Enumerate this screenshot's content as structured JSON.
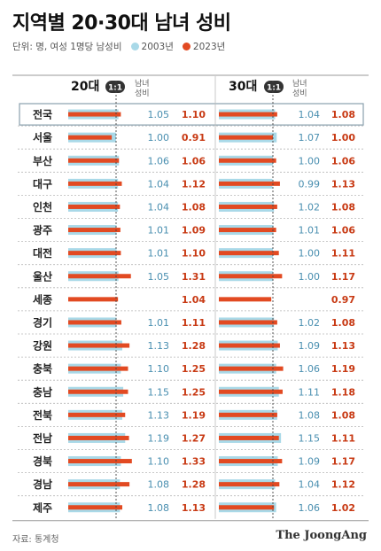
{
  "title": "지역별 20·30대 남녀 성비",
  "legend": {
    "unit": "단위: 명, 여성 1명당 남성비",
    "series": [
      {
        "name": "2003년",
        "color": "#a9d9e8"
      },
      {
        "name": "2023년",
        "color": "#e24a22"
      }
    ]
  },
  "source": "자료: 통계청",
  "brand": "The JoongAng",
  "chart_data": [
    {
      "type": "bar",
      "panel_label": "20대",
      "marker": "1:1",
      "value_header": "남녀\n성비",
      "reference_line": 1,
      "xlim": [
        0,
        1.5
      ],
      "categories": [
        "전국",
        "서울",
        "부산",
        "대구",
        "인천",
        "광주",
        "대전",
        "울산",
        "세종",
        "경기",
        "강원",
        "충북",
        "충남",
        "전북",
        "전남",
        "경북",
        "경남",
        "제주"
      ],
      "series": [
        {
          "name": "2003년",
          "values": [
            1.05,
            1.0,
            1.06,
            1.04,
            1.04,
            1.01,
            1.01,
            1.05,
            null,
            1.01,
            1.13,
            1.1,
            1.15,
            1.13,
            1.19,
            1.1,
            1.08,
            1.08
          ],
          "labels": [
            "1.05",
            "1.00",
            "1.06",
            "1.04",
            "1.04",
            "1.01",
            "1.01",
            "1.05",
            "",
            "1.01",
            "1.13",
            "1.10",
            "1.15",
            "1.13",
            "1.19",
            "1.10",
            "1.08",
            "1.08"
          ]
        },
        {
          "name": "2023년",
          "values": [
            1.1,
            0.91,
            1.06,
            1.12,
            1.08,
            1.09,
            1.1,
            1.31,
            1.04,
            1.11,
            1.28,
            1.25,
            1.25,
            1.19,
            1.27,
            1.33,
            1.28,
            1.13
          ],
          "labels": [
            "1.10",
            "0.91",
            "1.06",
            "1.12",
            "1.08",
            "1.09",
            "1.10",
            "1.31",
            "1.04",
            "1.11",
            "1.28",
            "1.25",
            "1.25",
            "1.19",
            "1.27",
            "1.33",
            "1.28",
            "1.13"
          ]
        }
      ]
    },
    {
      "type": "bar",
      "panel_label": "30대",
      "marker": "1:1",
      "value_header": "남녀\n성비",
      "reference_line": 1,
      "xlim": [
        0,
        1.5
      ],
      "categories": [
        "전국",
        "서울",
        "부산",
        "대구",
        "인천",
        "광주",
        "대전",
        "울산",
        "세종",
        "경기",
        "강원",
        "충북",
        "충남",
        "전북",
        "전남",
        "경북",
        "경남",
        "제주"
      ],
      "series": [
        {
          "name": "2003년",
          "values": [
            1.04,
            1.07,
            1.0,
            0.99,
            1.02,
            1.01,
            1.0,
            1.0,
            null,
            1.02,
            1.09,
            1.06,
            1.11,
            1.08,
            1.15,
            1.09,
            1.04,
            1.06
          ],
          "labels": [
            "1.04",
            "1.07",
            "1.00",
            "0.99",
            "1.02",
            "1.01",
            "1.00",
            "1.00",
            "",
            "1.02",
            "1.09",
            "1.06",
            "1.11",
            "1.08",
            "1.15",
            "1.09",
            "1.04",
            "1.06"
          ]
        },
        {
          "name": "2023년",
          "values": [
            1.08,
            1.0,
            1.06,
            1.13,
            1.08,
            1.06,
            1.11,
            1.17,
            0.97,
            1.08,
            1.13,
            1.19,
            1.18,
            1.08,
            1.11,
            1.17,
            1.12,
            1.02
          ],
          "labels": [
            "1.08",
            "1.00",
            "1.06",
            "1.13",
            "1.08",
            "1.06",
            "1.11",
            "1.17",
            "0.97",
            "1.08",
            "1.13",
            "1.19",
            "1.18",
            "1.08",
            "1.11",
            "1.17",
            "1.12",
            "1.02"
          ]
        }
      ]
    }
  ]
}
